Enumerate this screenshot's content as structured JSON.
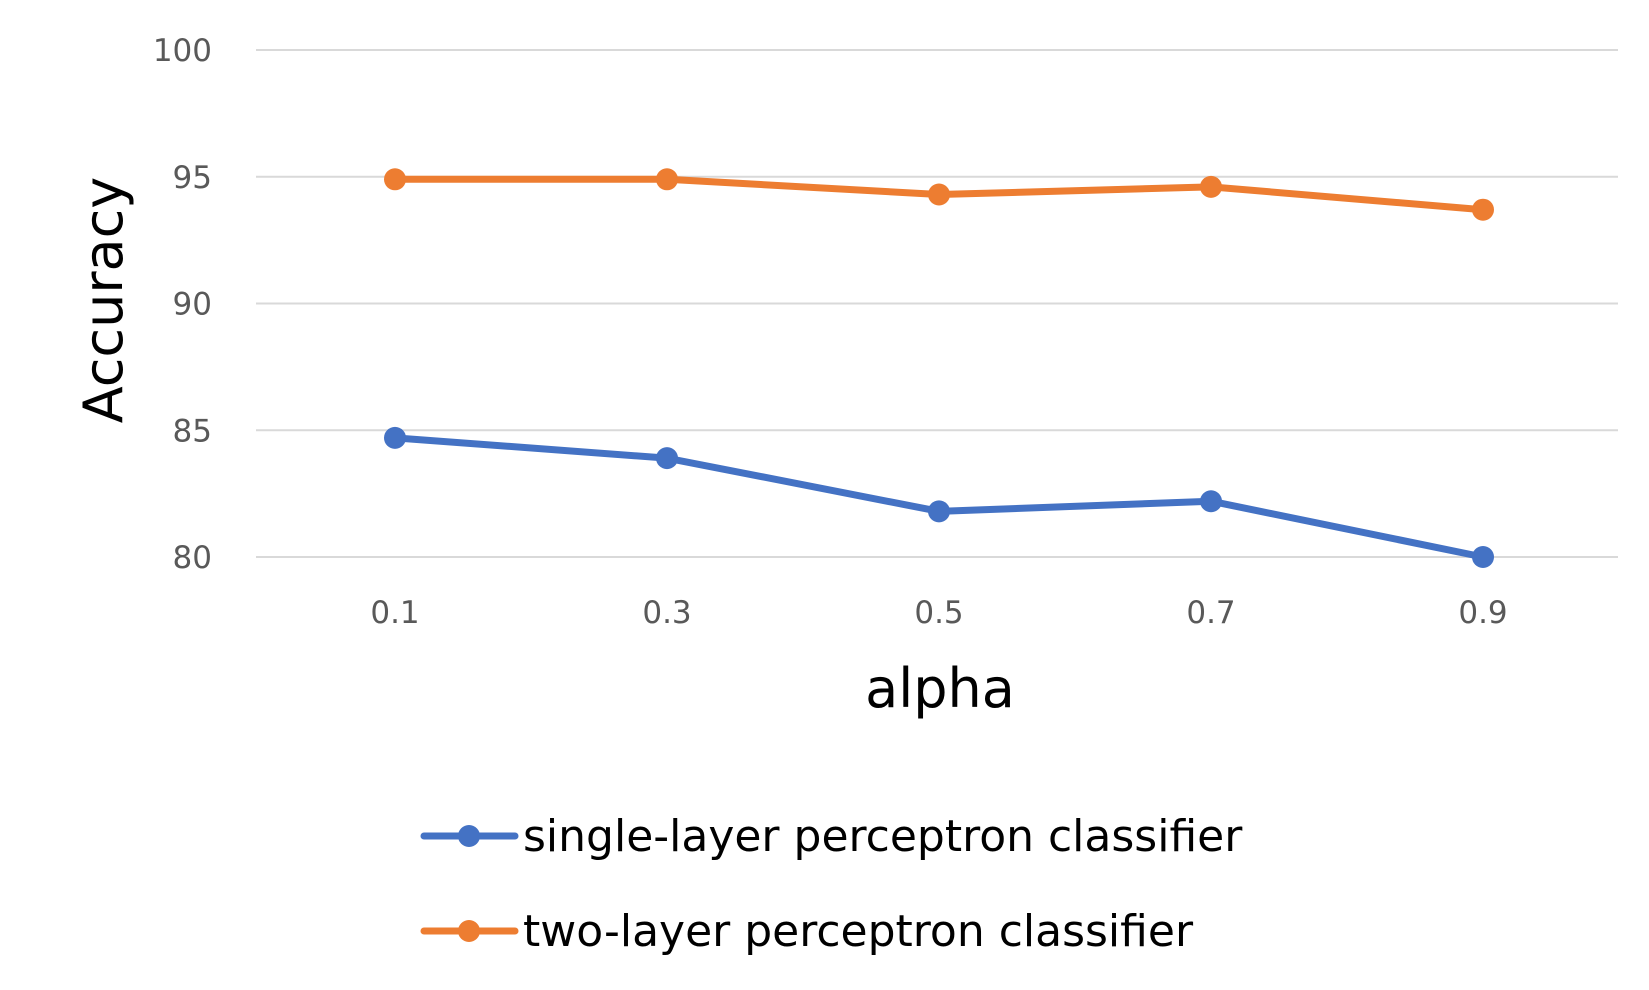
{
  "chart_data": {
    "type": "line",
    "title": "",
    "xlabel": "alpha",
    "ylabel": "Accuracy",
    "x": [
      "0.1",
      "0.3",
      "0.5",
      "0.7",
      "0.9"
    ],
    "ylim": [
      80,
      100
    ],
    "yticks": [
      "80",
      "85",
      "90",
      "95",
      "100"
    ],
    "grid": true,
    "legend_position": "bottom",
    "series": [
      {
        "name": "single-layer perceptron classifier",
        "color": "#4472C4",
        "values": [
          84.7,
          83.9,
          81.8,
          82.2,
          80.0
        ]
      },
      {
        "name": "two-layer perceptron classifier",
        "color": "#ED7D31",
        "values": [
          94.9,
          94.9,
          94.3,
          94.6,
          93.7
        ]
      }
    ]
  }
}
